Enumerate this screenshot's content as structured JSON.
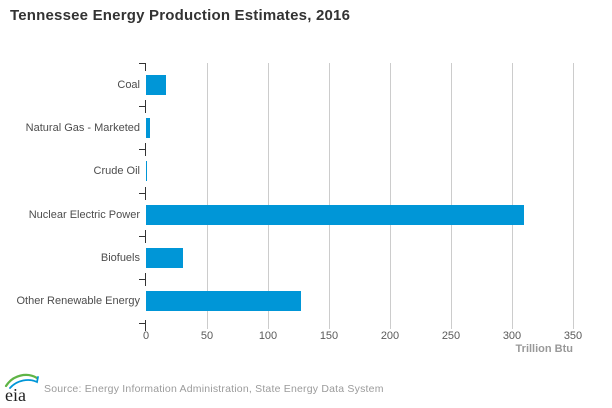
{
  "title": "Tennessee Energy Production Estimates, 2016",
  "chart_data": {
    "type": "bar",
    "orientation": "horizontal",
    "title": "Tennessee Energy Production Estimates, 2016",
    "categories": [
      "Coal",
      "Natural Gas - Marketed",
      "Crude Oil",
      "Nuclear Electric Power",
      "Biofuels",
      "Other Renewable Energy"
    ],
    "values": [
      16,
      3.5,
      1,
      310,
      30,
      127
    ],
    "xlabel": "Trillion Btu",
    "ylabel": "",
    "xlim": [
      0,
      350
    ],
    "xticks": [
      0,
      50,
      100,
      150,
      200,
      250,
      300,
      350
    ],
    "grid": true,
    "legend": false,
    "bar_color": "#0096d7",
    "gridline_color": "#cccccc",
    "tick_color": "#333333"
  },
  "footer": {
    "logo_text": "eia",
    "source": "Source: Energy Information Administration, State Energy Data System"
  }
}
